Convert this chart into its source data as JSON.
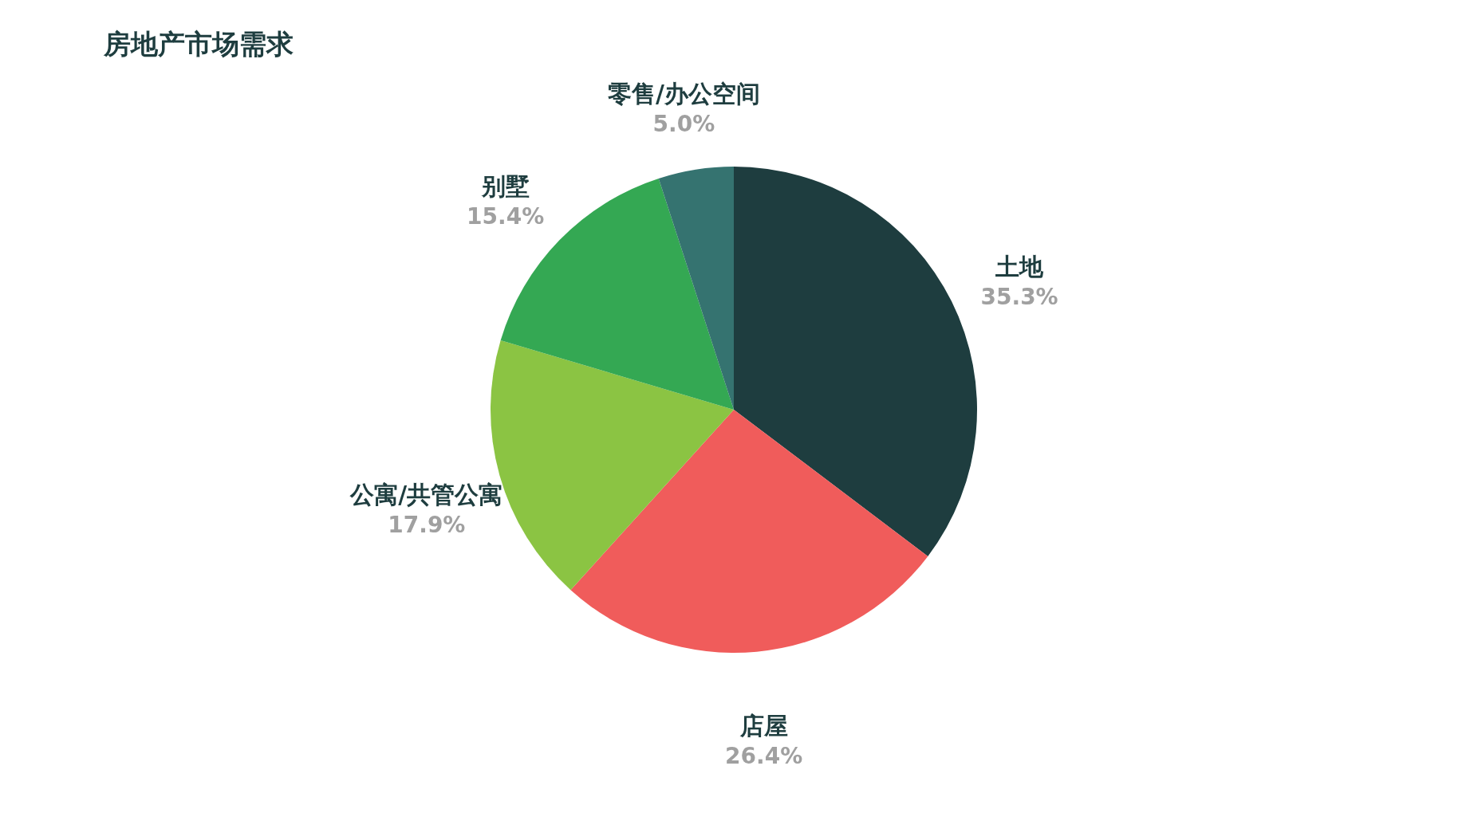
{
  "chart_data": {
    "type": "pie",
    "title": "房地产市场需求",
    "categories": [
      "土地",
      "店屋",
      "公寓/共管公寓",
      "别墅",
      "零售/办公空间"
    ],
    "values": [
      35.3,
      26.4,
      17.9,
      15.4,
      5.0
    ],
    "value_labels": [
      "35.3%",
      "26.4%",
      "17.9%",
      "15.4%",
      "5.0%"
    ],
    "colors": [
      "#1e3d3f",
      "#f05c5b",
      "#8bc443",
      "#34a853",
      "#357370"
    ]
  }
}
